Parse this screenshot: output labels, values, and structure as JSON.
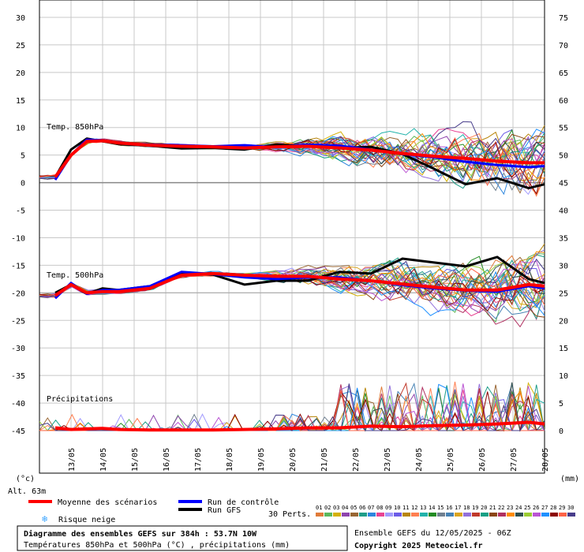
{
  "chart_data": {
    "type": "line",
    "title": "Diagramme des ensembles GEFS sur 384h : 53.7N 10W",
    "subtitle": "Températures 850hPa et 500hPa (°C) , précipitations (mm)",
    "run_info": "Ensemble GEFS du 12/05/2025 - 06Z",
    "copyright": "Copyright 2025 Meteociel.fr",
    "altitude": "Alt. 63m",
    "left_unit": "(°c)",
    "right_unit": "(mm)",
    "left_axis": {
      "ylim": [
        -45,
        30
      ],
      "ticks": [
        "30",
        "25",
        "20",
        "15",
        "10",
        "5",
        "0",
        "-5",
        "-10",
        "-15",
        "-20",
        "-25",
        "-30",
        "-35",
        "-40",
        "-45"
      ]
    },
    "right_axis": {
      "ylim": [
        0,
        75
      ],
      "ticks": [
        "75",
        "70",
        "65",
        "60",
        "55",
        "50",
        "45",
        "40",
        "35",
        "30",
        "25",
        "20",
        "15",
        "10",
        "5",
        "0"
      ]
    },
    "x_dates": [
      "13/05",
      "14/05",
      "15/05",
      "16/05",
      "17/05",
      "18/05",
      "19/05",
      "20/05",
      "21/05",
      "22/05",
      "23/05",
      "24/05",
      "25/05",
      "26/05",
      "27/05",
      "28/05"
    ],
    "section_labels": {
      "t850": "Temp. 850hPa",
      "t500": "Temp. 500hPa",
      "precip": "Précipitations"
    },
    "legend": {
      "mean": "Moyenne des scénarios",
      "control": "Run de contrôle",
      "gfs": "Run GFS",
      "snow": "Risque neige",
      "perts": "30 Perts."
    },
    "colors": {
      "mean": "#ff0000",
      "control": "#0000ff",
      "gfs": "#000000",
      "snow": "#3da6ff"
    },
    "pert_labels": [
      "01",
      "02",
      "03",
      "04",
      "05",
      "06",
      "07",
      "08",
      "09",
      "10",
      "11",
      "12",
      "13",
      "14",
      "15",
      "16",
      "17",
      "18",
      "19",
      "20",
      "21",
      "22",
      "23",
      "24",
      "25",
      "26",
      "27",
      "28",
      "29",
      "30"
    ],
    "pert_colors": [
      "#e07b39",
      "#5cb85c",
      "#d4b106",
      "#8e44ad",
      "#996633",
      "#1f9e89",
      "#2e86de",
      "#e84393",
      "#a29bfe",
      "#6c5ce7",
      "#b8860b",
      "#ff7f50",
      "#20b2aa",
      "#228b22",
      "#708090",
      "#4682b4",
      "#daa520",
      "#9370db",
      "#c0392b",
      "#16a085",
      "#8b4513",
      "#b03060",
      "#ff8c00",
      "#2f4f4f",
      "#9acd32",
      "#ba55d3",
      "#1e90ff",
      "#8b0000",
      "#ff6347",
      "#483d8b"
    ],
    "series": [
      {
        "name": "Moyenne des scénarios",
        "group": "t850",
        "x": [
          0,
          0.5,
          1,
          1.5,
          2,
          3,
          4,
          5,
          6,
          7,
          8,
          9,
          10,
          11,
          12,
          13,
          14,
          15,
          15.5
        ],
        "values": [
          1,
          5,
          7.5,
          7.6,
          7.2,
          6.8,
          6.6,
          6.5,
          6.3,
          6.5,
          6.6,
          6.3,
          5.9,
          5.3,
          4.8,
          4.4,
          3.9,
          3.6,
          3.6
        ]
      },
      {
        "name": "Run de contrôle",
        "group": "t850",
        "x": [
          0,
          0.5,
          1,
          1.5,
          2,
          3,
          4,
          5,
          6,
          7,
          8,
          9,
          10,
          11,
          12,
          13,
          14,
          15,
          15.5
        ],
        "values": [
          0.5,
          5,
          7.8,
          7.7,
          7.2,
          6.9,
          6.8,
          6.6,
          6.8,
          6.4,
          6.9,
          6.7,
          6.0,
          5.2,
          4.6,
          3.8,
          3.2,
          2.8,
          3.0
        ]
      },
      {
        "name": "Run GFS",
        "group": "t850",
        "x": [
          0,
          0.5,
          1,
          1.5,
          2,
          3,
          4,
          5,
          6,
          7,
          8,
          9,
          10,
          11,
          12,
          13,
          14,
          15,
          15.5
        ],
        "values": [
          1,
          6,
          8,
          7.5,
          7.0,
          6.7,
          6.2,
          6.3,
          6.0,
          6.9,
          6.6,
          6.3,
          6.5,
          5.2,
          2.5,
          -0.3,
          0.8,
          -1.0,
          -0.3
        ]
      },
      {
        "name": "Moyenne des scénarios",
        "group": "t500",
        "x": [
          0,
          0.5,
          1,
          1.5,
          2,
          3,
          4,
          5,
          6,
          7,
          8,
          9,
          10,
          11,
          12,
          13,
          14,
          15,
          15.5
        ],
        "values": [
          -20.5,
          -18.5,
          -20,
          -19.8,
          -19.8,
          -19.2,
          -16.8,
          -16.5,
          -16.8,
          -17,
          -17,
          -17.5,
          -17.8,
          -18.4,
          -19,
          -19.5,
          -19.5,
          -18.5,
          -18.8
        ]
      },
      {
        "name": "Run de contrôle",
        "group": "t500",
        "x": [
          0,
          0.5,
          1,
          1.5,
          2,
          3,
          4,
          5,
          6,
          7,
          8,
          9,
          10,
          11,
          12,
          13,
          14,
          15,
          15.5
        ],
        "values": [
          -21,
          -18.2,
          -20.2,
          -19.5,
          -19.5,
          -18.8,
          -16.2,
          -16.6,
          -17.2,
          -17.5,
          -17.2,
          -17.2,
          -17.8,
          -18.6,
          -19.2,
          -19.6,
          -19.8,
          -18.8,
          -19.2
        ]
      },
      {
        "name": "Run GFS",
        "group": "t500",
        "x": [
          0,
          0.5,
          1,
          1.5,
          2,
          3,
          4,
          5,
          6,
          7,
          8,
          9,
          10,
          11,
          12,
          13,
          14,
          15,
          15.5
        ],
        "values": [
          -20,
          -18.5,
          -20.2,
          -19.2,
          -19.5,
          -18.8,
          -16.4,
          -16.7,
          -18.5,
          -17.8,
          -17.8,
          -16.2,
          -16.5,
          -13.8,
          -14.5,
          -15.2,
          -13.5,
          -17.5,
          -18.2
        ]
      },
      {
        "name": "Moyenne des scénarios",
        "group": "precip",
        "x": [
          0,
          0.5,
          1,
          1.5,
          2,
          3,
          4,
          5,
          6,
          7,
          8,
          9,
          10,
          11,
          12,
          13,
          14,
          15,
          15.5
        ],
        "values": [
          0.5,
          0.2,
          0.3,
          0.4,
          0.2,
          0.1,
          0.1,
          0.1,
          0.2,
          0.3,
          0.5,
          0.5,
          0.8,
          0.7,
          0.9,
          1.0,
          1.2,
          1.5,
          1.2
        ]
      }
    ]
  }
}
